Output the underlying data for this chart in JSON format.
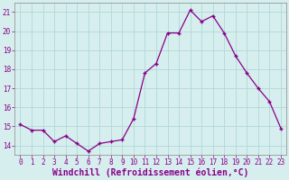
{
  "x": [
    0,
    1,
    2,
    3,
    4,
    5,
    6,
    7,
    8,
    9,
    10,
    11,
    12,
    13,
    14,
    15,
    16,
    17,
    18,
    19,
    20,
    21,
    22,
    23
  ],
  "y": [
    15.1,
    14.8,
    14.8,
    14.2,
    14.5,
    14.1,
    13.7,
    14.1,
    14.2,
    14.3,
    15.4,
    17.8,
    18.3,
    19.9,
    19.9,
    21.1,
    20.5,
    20.8,
    19.9,
    18.7,
    17.8,
    17.0,
    16.3,
    14.9
  ],
  "line_color": "#880088",
  "marker": "+",
  "marker_size": 3,
  "bg_color": "#d6eeee",
  "grid_color": "#b0d8d8",
  "xlabel": "Windchill (Refroidissement éolien,°C)",
  "tick_color": "#880088",
  "ylim": [
    13.5,
    21.5
  ],
  "yticks": [
    14,
    15,
    16,
    17,
    18,
    19,
    20,
    21
  ],
  "xticks": [
    0,
    1,
    2,
    3,
    4,
    5,
    6,
    7,
    8,
    9,
    10,
    11,
    12,
    13,
    14,
    15,
    16,
    17,
    18,
    19,
    20,
    21,
    22,
    23
  ],
  "tick_fontsize": 5.5,
  "xlabel_fontsize": 7.0,
  "spine_color": "#888888"
}
